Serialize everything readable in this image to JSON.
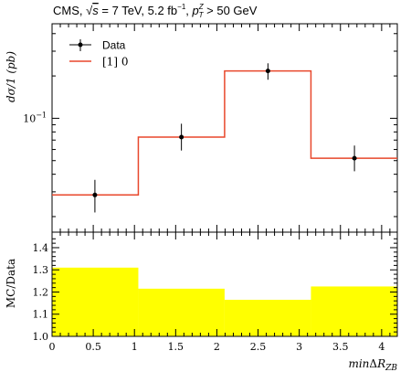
{
  "chart_data": [
    {
      "type": "line",
      "title": "CMS, √s = 7 TeV, 5.2 fb⁻¹, p_T^Z > 50 GeV",
      "title_parts": {
        "lead": "CMS, ",
        "sqrt_s": "s",
        "energy": " = 7 TeV, 5.2 fb",
        "lumi_exp": "−1",
        "sep": ", ",
        "p": "p",
        "p_sub": "T",
        "p_sup": "Z",
        "cut": " > 50 GeV"
      },
      "ylabel": "dσ/1 (pb)",
      "yscale": "log",
      "ylim": [
        0.0155,
        0.47
      ],
      "y_tick_labels": [
        {
          "value": 0.1,
          "base": "10",
          "exp": "−1"
        }
      ],
      "xlim": [
        0,
        4.19
      ],
      "bin_edges": [
        0,
        1.047,
        2.094,
        3.142,
        4.19
      ],
      "legend": {
        "position": "top-left",
        "entries": [
          "Data",
          "[1] 0"
        ]
      },
      "series": [
        {
          "name": "Data",
          "style": "points-with-errorbars",
          "color": "#000000",
          "x": [
            0.52,
            1.57,
            2.62,
            3.67
          ],
          "y": [
            0.0285,
            0.0735,
            0.217,
            0.052
          ],
          "y_low": [
            0.0214,
            0.059,
            0.188,
            0.042
          ],
          "y_high": [
            0.0365,
            0.0915,
            0.246,
            0.064
          ]
        },
        {
          "name": "[1] 0",
          "style": "step",
          "color": "#e8472b",
          "y": [
            0.0285,
            0.0735,
            0.217,
            0.052
          ]
        }
      ]
    },
    {
      "type": "area",
      "ylabel": "MC/Data",
      "xlabel_parts": {
        "pre": "min",
        "delta": "Δ",
        "var": "R",
        "sub": "ZB"
      },
      "ylim": [
        1.0,
        1.47
      ],
      "xlim": [
        0,
        4.19
      ],
      "y_ticks": [
        1.0,
        1.1,
        1.2,
        1.3,
        1.4
      ],
      "y_tick_labels": [
        "1.0",
        "1.1",
        "1.2",
        "1.3",
        "1.4"
      ],
      "x_ticks": [
        0,
        0.5,
        1,
        1.5,
        2,
        2.5,
        3,
        3.5,
        4
      ],
      "x_tick_labels": [
        "0",
        "0.5",
        "1",
        "1.5",
        "2",
        "2.5",
        "3",
        "3.5",
        "4"
      ],
      "bin_edges": [
        0,
        1.047,
        2.094,
        3.142,
        4.19
      ],
      "series": [
        {
          "name": "",
          "color": "#ffff00",
          "values": [
            1.31,
            1.215,
            1.165,
            1.225
          ]
        }
      ]
    }
  ]
}
